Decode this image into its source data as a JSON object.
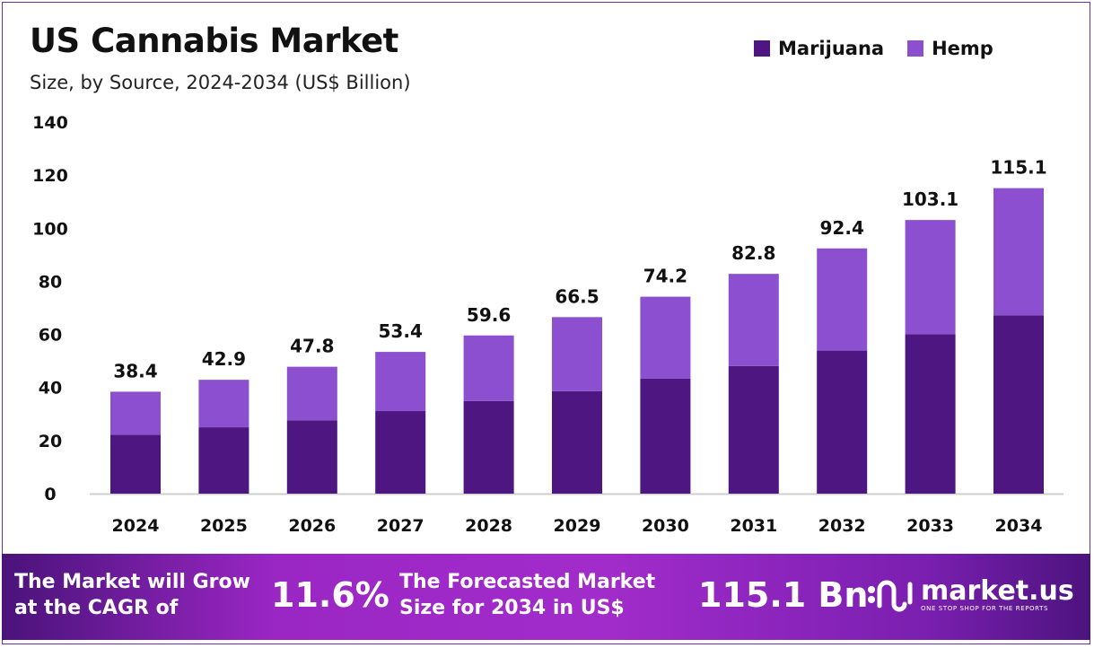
{
  "chart_data": {
    "type": "bar",
    "stacked": true,
    "title": "US Cannabis Market",
    "subtitle": "Size, by Source, 2024-2034 (US$ Billion)",
    "categories": [
      "2024",
      "2025",
      "2026",
      "2027",
      "2028",
      "2029",
      "2030",
      "2031",
      "2032",
      "2033",
      "2034"
    ],
    "series": [
      {
        "name": "Marijuana",
        "color": "#4d1680",
        "values": [
          22.2,
          25.0,
          27.6,
          31.1,
          34.9,
          38.6,
          43.3,
          48.1,
          53.9,
          60.1,
          67.2
        ]
      },
      {
        "name": "Hemp",
        "color": "#8b4fcf",
        "values": [
          16.2,
          17.9,
          20.2,
          22.3,
          24.7,
          27.9,
          30.9,
          34.7,
          38.5,
          43.0,
          47.9
        ]
      }
    ],
    "totals": [
      "38.4",
      "42.9",
      "47.8",
      "53.4",
      "59.6",
      "66.5",
      "74.2",
      "82.8",
      "92.4",
      "103.1",
      "115.1"
    ],
    "ylim": [
      0,
      140
    ],
    "yticks": [
      "0",
      "20",
      "40",
      "60",
      "80",
      "100",
      "120",
      "140"
    ],
    "grid": false,
    "legend_position": "top-right"
  },
  "banner": {
    "cagr_text_1": "The Market will Grow",
    "cagr_text_2": "at the CAGR of",
    "cagr_value": "11.6%",
    "forecast_text_1": "The Forecasted Market",
    "forecast_text_2": "Size for 2034 in US$",
    "forecast_value": "115.1 Bn",
    "logo_name": "market.us",
    "logo_tagline": "ONE STOP SHOP FOR THE REPORTS"
  }
}
